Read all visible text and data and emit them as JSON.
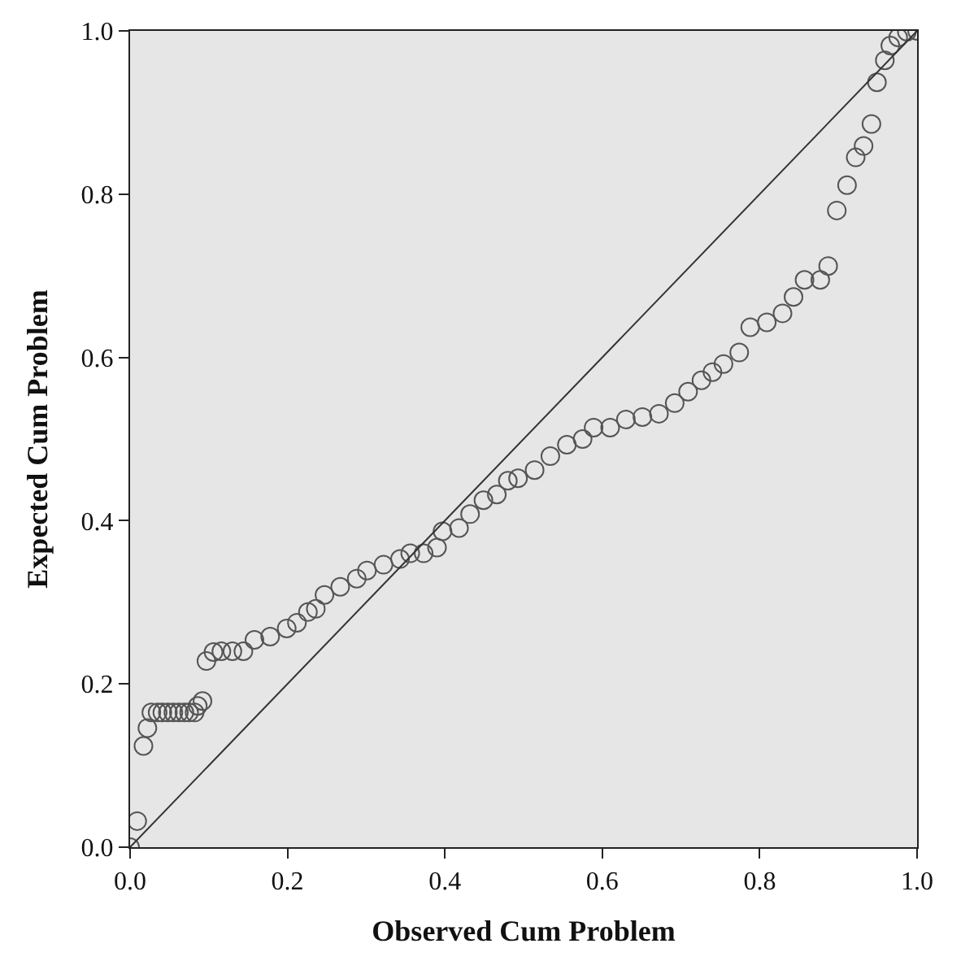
{
  "chart_data": {
    "type": "scatter",
    "xlabel": "Observed Cum Problem",
    "ylabel": "Expected Cum Problem",
    "xlim": [
      0,
      1
    ],
    "ylim": [
      0,
      1
    ],
    "xticks": [
      {
        "value": 0,
        "label": "0.0"
      },
      0.2,
      0.4,
      0.6,
      0.8,
      {
        "value": 1,
        "label": "1.0"
      }
    ],
    "yticks": [
      {
        "value": 0,
        "label": "0.0"
      },
      0.2,
      0.4,
      0.6,
      0.8,
      {
        "value": 1,
        "label": "1.0"
      }
    ],
    "grid": false,
    "marker": "circle",
    "series": [
      {
        "color": "#555555",
        "x": [
          0,
          0.009,
          0.017,
          0.022,
          0.027,
          0.035,
          0.041,
          0.048,
          0.055,
          0.062,
          0.069,
          0.075,
          0.082,
          0.086,
          0.092,
          0.097,
          0.106,
          0.116,
          0.13,
          0.144,
          0.158,
          0.178,
          0.199,
          0.212,
          0.226,
          0.236,
          0.247,
          0.267,
          0.288,
          0.301,
          0.322,
          0.343,
          0.356,
          0.373,
          0.39,
          0.397,
          0.418,
          0.432,
          0.449,
          0.466,
          0.48,
          0.493,
          0.514,
          0.534,
          0.555,
          0.575,
          0.589,
          0.61,
          0.63,
          0.651,
          0.672,
          0.692,
          0.709,
          0.726,
          0.74,
          0.754,
          0.774,
          0.788,
          0.809,
          0.829,
          0.843,
          0.857,
          0.877,
          0.887,
          0.898,
          0.911,
          0.922,
          0.932,
          0.942,
          0.949,
          0.959,
          0.966,
          0.976,
          0.987,
          1.0
        ],
        "values": [
          0,
          0.032,
          0.124,
          0.146,
          0.165,
          0.165,
          0.165,
          0.165,
          0.165,
          0.165,
          0.165,
          0.165,
          0.165,
          0.173,
          0.179,
          0.228,
          0.239,
          0.24,
          0.24,
          0.24,
          0.254,
          0.258,
          0.268,
          0.275,
          0.288,
          0.292,
          0.309,
          0.319,
          0.329,
          0.339,
          0.346,
          0.353,
          0.36,
          0.36,
          0.367,
          0.387,
          0.391,
          0.408,
          0.425,
          0.432,
          0.449,
          0.452,
          0.462,
          0.479,
          0.493,
          0.5,
          0.514,
          0.514,
          0.524,
          0.527,
          0.531,
          0.544,
          0.558,
          0.572,
          0.582,
          0.592,
          0.606,
          0.637,
          0.643,
          0.654,
          0.674,
          0.695,
          0.695,
          0.712,
          0.78,
          0.811,
          0.845,
          0.859,
          0.886,
          0.937,
          0.964,
          0.982,
          0.992,
          0.999,
          1.0
        ]
      },
      {
        "type": "line",
        "color": "#333333",
        "marker": "none",
        "x": [
          0,
          1
        ],
        "values": [
          0,
          1
        ]
      }
    ]
  }
}
